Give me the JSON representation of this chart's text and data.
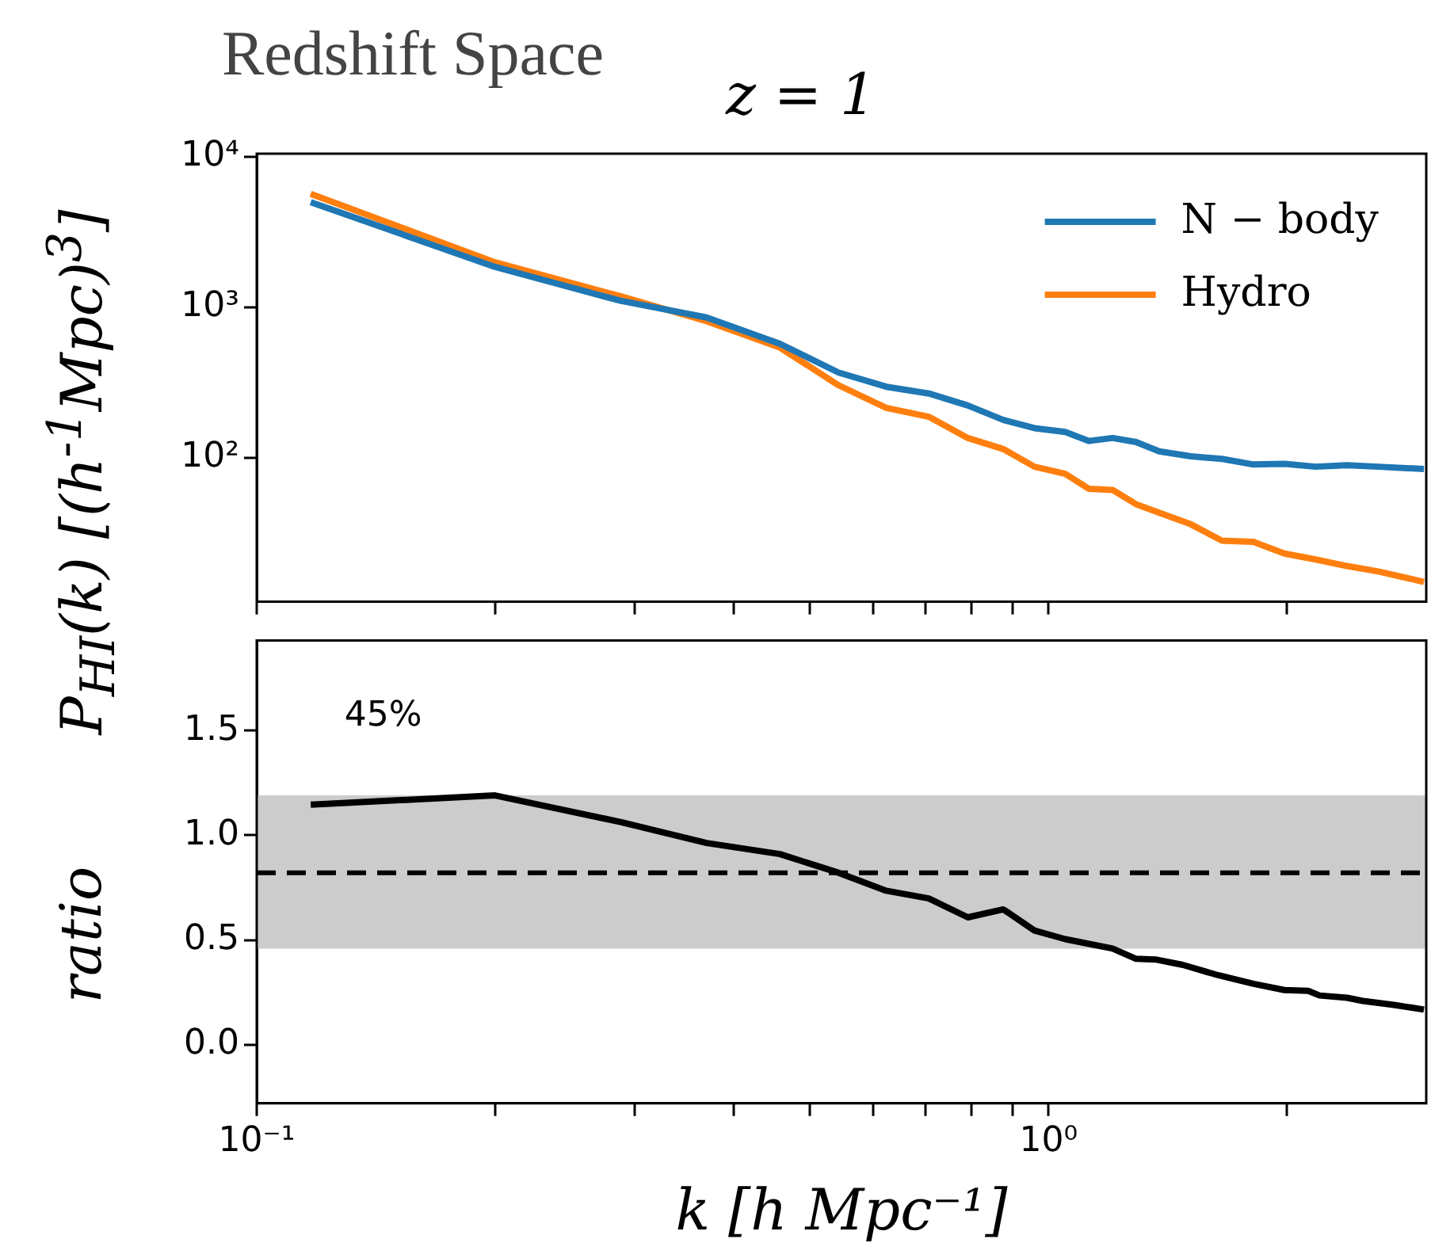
{
  "chart_data": [
    {
      "type": "line",
      "title": "Redshift Space",
      "subtitle": "z = 1",
      "ylabel": "P$_{HI}$(k) [(h$^{-1}$Mpc)$^{3}$]",
      "log": "xy",
      "xlim": [
        0.1,
        3.0
      ],
      "ylim": [
        11,
        10500
      ],
      "xticks": [
        0.1,
        0.2,
        0.3,
        0.4,
        0.5,
        0.6,
        0.7,
        0.8,
        0.9,
        1,
        2
      ],
      "yticks": [
        {
          "value": 100,
          "label": "10²"
        },
        {
          "value": 1000,
          "label": "10³"
        },
        {
          "value": 10000,
          "label": "10⁴"
        }
      ],
      "tick_labels": "y",
      "grid": false,
      "legend": "top right",
      "x": [
        0.117,
        0.2,
        0.288,
        0.37,
        0.458,
        0.543,
        0.624,
        0.706,
        0.791,
        0.877,
        0.96,
        1.05,
        1.125,
        1.205,
        1.29,
        1.38,
        1.513,
        1.656,
        1.815,
        1.986,
        2.175,
        2.383,
        2.61,
        2.98
      ],
      "series": [
        {
          "name": "N − body",
          "color": "#1f77b4",
          "values": [
            5000,
            1854,
            1104,
            855,
            571,
            368,
            296,
            267,
            222,
            178,
            157,
            148,
            129,
            135,
            127,
            110,
            102,
            98,
            90,
            91,
            87,
            89,
            87,
            84
          ]
        },
        {
          "name": "Hydro",
          "color": "#ff7f0e",
          "values": [
            5680,
            1987,
            1183,
            807,
            539,
            303,
            214,
            187,
            135,
            114,
            87,
            78,
            62,
            61,
            49,
            43,
            36,
            28,
            27.5,
            23,
            21,
            19,
            17.5,
            14.9
          ]
        }
      ]
    },
    {
      "type": "line",
      "ylabel": "ratio",
      "xlabel": "k [h Mpc⁻¹]",
      "log": "x",
      "xlim": [
        0.1,
        3.0
      ],
      "ylim": [
        -0.28,
        1.93
      ],
      "xticks": [
        {
          "value": 0.1,
          "label": "10⁻¹"
        },
        {
          "value": 0.2,
          "label": null
        },
        {
          "value": 0.3,
          "label": null
        },
        {
          "value": 0.4,
          "label": null
        },
        {
          "value": 0.5,
          "label": null
        },
        {
          "value": 0.6,
          "label": null
        },
        {
          "value": 0.7,
          "label": null
        },
        {
          "value": 0.8,
          "label": null
        },
        {
          "value": 0.9,
          "label": null
        },
        {
          "value": 1,
          "label": "10⁰"
        },
        {
          "value": 2,
          "label": null
        }
      ],
      "yticks": [
        {
          "value": 0,
          "label": "0.0"
        },
        0.5,
        {
          "value": 1,
          "label": "1.0"
        },
        1.5
      ],
      "grid": false,
      "annotations": [
        "45%"
      ],
      "bands": [
        {
          "axis": "y",
          "from": 0.459,
          "to": 1.19,
          "color": "#cccccc"
        }
      ],
      "ref_lines": [
        {
          "axis": "y",
          "value": 0.821,
          "color": "#000000",
          "line_style": "dashed"
        }
      ],
      "x": [
        0.117,
        0.2,
        0.288,
        0.37,
        0.458,
        0.543,
        0.624,
        0.706,
        0.791,
        0.877,
        0.96,
        1.05,
        1.205,
        1.29,
        1.365,
        1.478,
        1.637,
        1.815,
        1.986,
        2.128,
        2.2,
        2.383,
        2.494,
        2.73,
        2.98
      ],
      "series": [
        {
          "color": "#000000",
          "values": [
            1.146,
            1.19,
            1.063,
            0.963,
            0.91,
            0.821,
            0.735,
            0.698,
            0.608,
            0.646,
            0.545,
            0.504,
            0.459,
            0.41,
            0.407,
            0.381,
            0.332,
            0.291,
            0.261,
            0.257,
            0.235,
            0.224,
            0.209,
            0.19,
            0.168
          ]
        }
      ]
    }
  ]
}
